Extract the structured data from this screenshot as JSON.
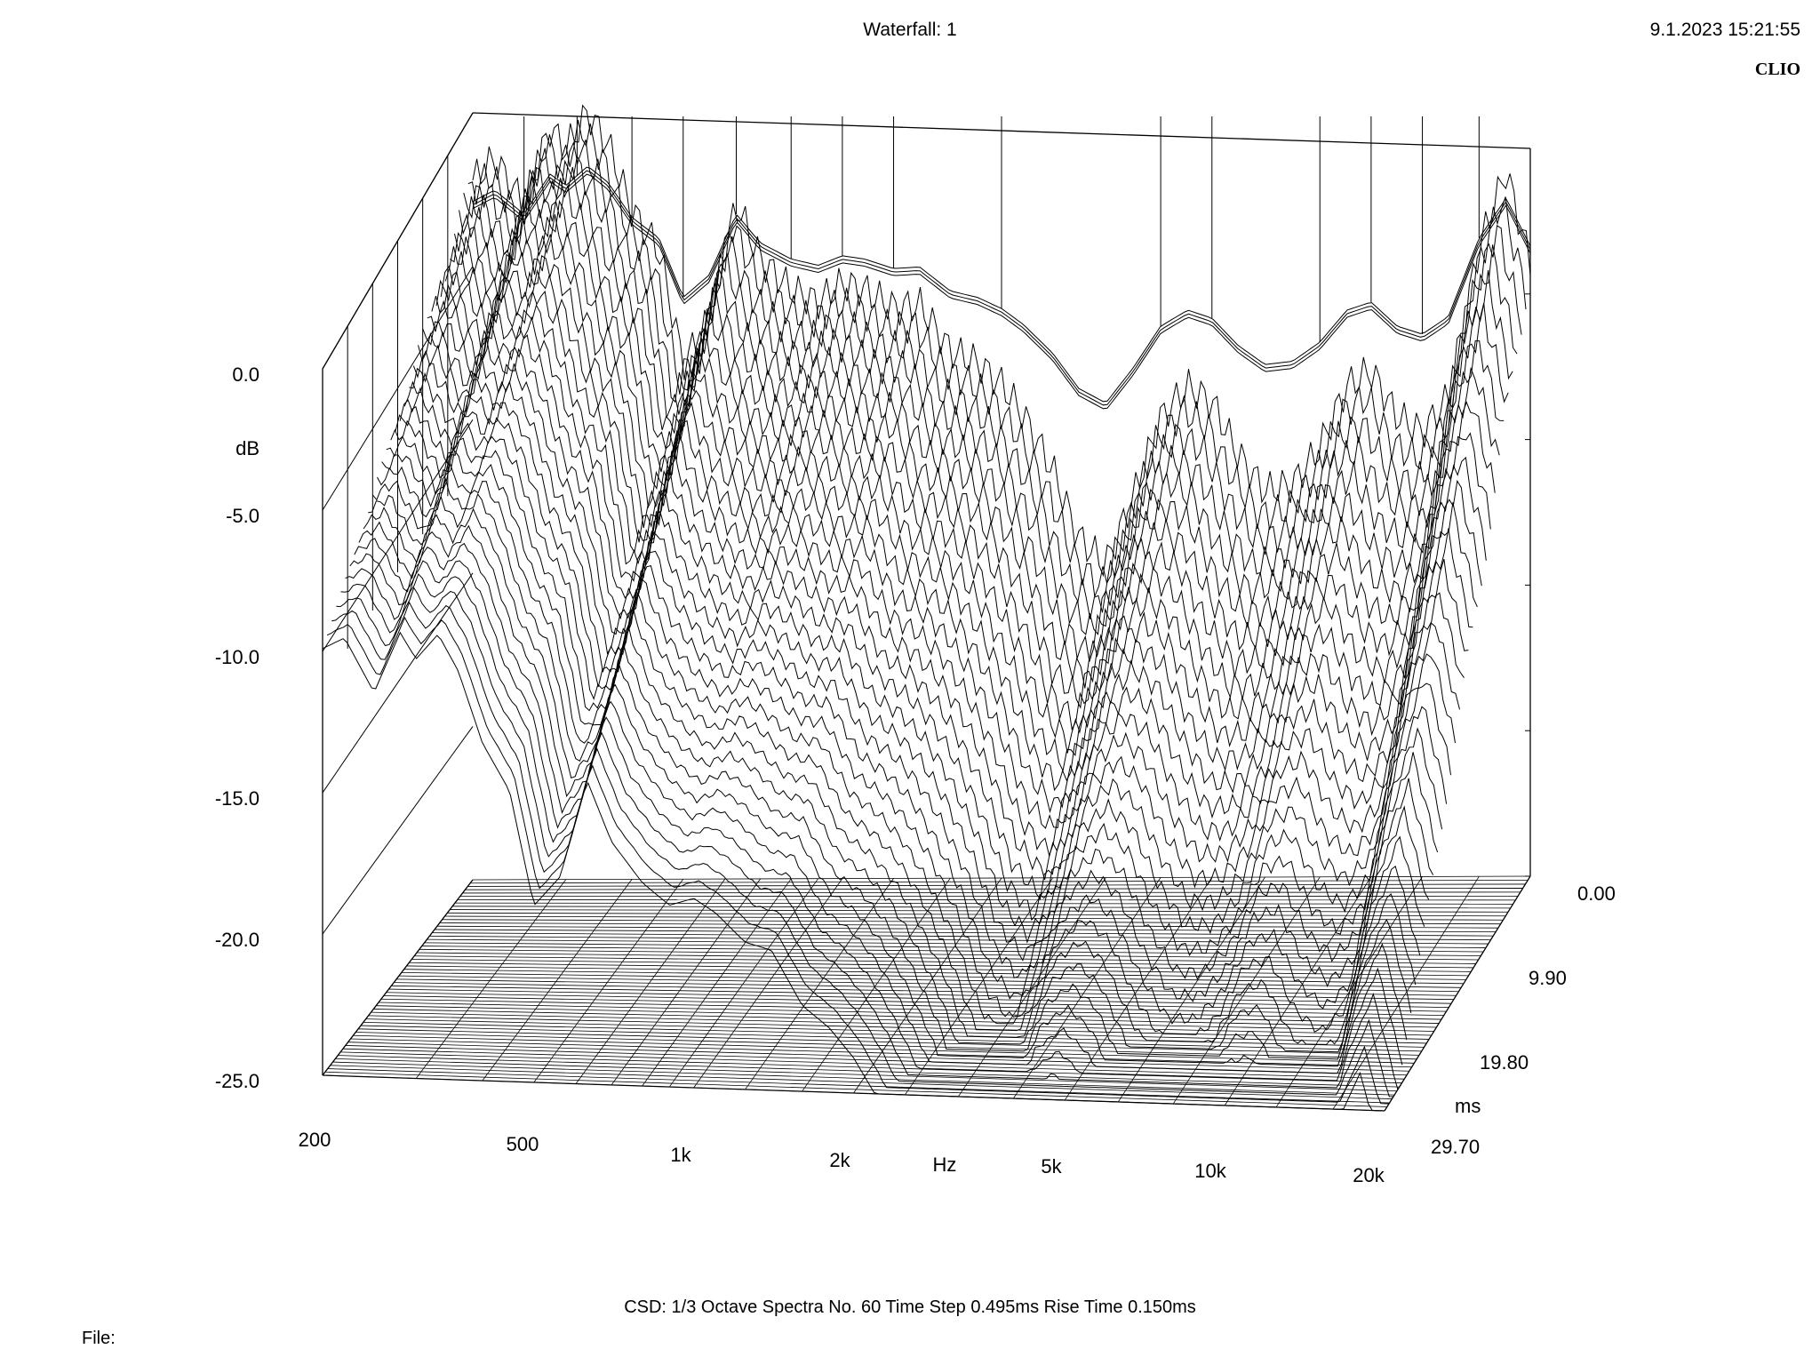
{
  "header": {
    "title": "Waterfall: 1",
    "datetime": "9.1.2023 15:21:55",
    "brand": "CLIO"
  },
  "footer": {
    "settings": "CSD:    1/3 Octave    Spectra No. 60    Time Step 0.495ms    Rise Time 0.150ms",
    "file_label": "File:"
  },
  "chart_data": {
    "type": "waterfall",
    "title": "Waterfall: 1",
    "z_label": "dB",
    "x_label": "Hz",
    "y_label": "ms",
    "z_ticks": [
      "0.0",
      "-5.0",
      "-10.0",
      "-15.0",
      "-20.0",
      "-25.0"
    ],
    "x_ticks": [
      "200",
      "500",
      "1k",
      "2k",
      "5k",
      "10k",
      "20k"
    ],
    "y_ticks": [
      "0.00",
      "9.90",
      "19.80",
      "29.70"
    ],
    "x_scale": "log",
    "x_range_hz": [
      200,
      20000
    ],
    "z_range_db": [
      -25,
      0
    ],
    "time_range_ms": [
      0,
      29.7
    ],
    "spectra_count": 60,
    "time_step_ms": 0.495,
    "rise_time_ms": 0.15,
    "smoothing": "1/3 Octave",
    "front_spectrum": {
      "freq_hz": [
        200,
        220,
        250,
        280,
        300,
        330,
        360,
        400,
        450,
        500,
        560,
        630,
        700,
        800,
        900,
        1000,
        1100,
        1250,
        1400,
        1600,
        1800,
        2000,
        2200,
        2500,
        2800,
        3150,
        3550,
        4000,
        4500,
        5000,
        5600,
        6300,
        7100,
        8000,
        9000,
        10000,
        11200,
        12500,
        14000,
        16000,
        18000,
        20000
      ],
      "level_db": [
        -2.2,
        -1.5,
        -3.0,
        -0.5,
        -1.2,
        0.0,
        -1.0,
        -3.2,
        -4.5,
        -8.2,
        -6.8,
        -3.0,
        -4.8,
        -5.8,
        -6.2,
        -5.6,
        -5.8,
        -6.4,
        -6.3,
        -7.8,
        -8.2,
        -8.9,
        -9.9,
        -11.7,
        -13.9,
        -14.8,
        -12.6,
        -10.0,
        -9.0,
        -9.5,
        -11.2,
        -12.4,
        -12.2,
        -11.0,
        -9.0,
        -8.5,
        -10.0,
        -10.5,
        -9.4,
        -4.5,
        -2.0,
        -5.0
      ]
    }
  }
}
